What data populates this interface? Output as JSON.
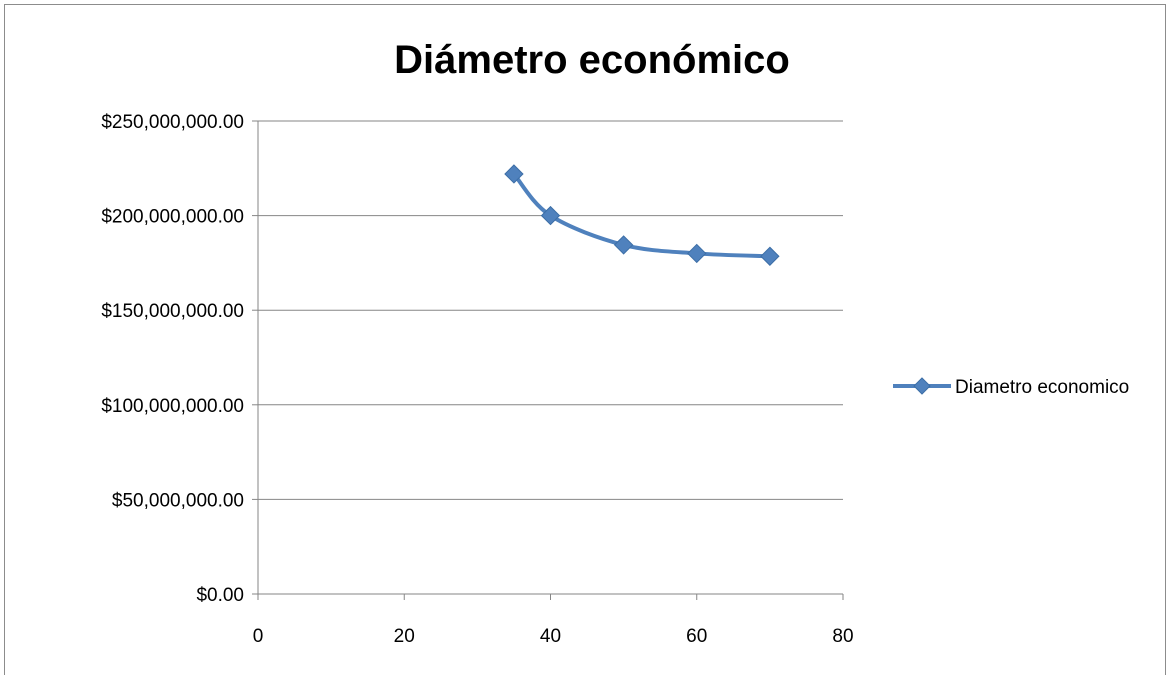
{
  "chart_data": {
    "type": "scatter",
    "title": "Diámetro económico",
    "xlabel": "",
    "ylabel": "",
    "xlim": [
      0,
      80
    ],
    "ylim": [
      0,
      250000000
    ],
    "x_ticks": [
      0,
      20,
      40,
      60,
      80
    ],
    "x_tick_labels": [
      "0",
      "20",
      "40",
      "60",
      "80"
    ],
    "y_ticks": [
      0,
      50000000,
      100000000,
      150000000,
      200000000,
      250000000
    ],
    "y_tick_labels": [
      "$0.00",
      "$50,000,000.00",
      "$100,000,000.00",
      "$150,000,000.00",
      "$200,000,000.00",
      "$250,000,000.00"
    ],
    "grid": "horizontal",
    "legend_position": "right",
    "smooth_line": true,
    "series": [
      {
        "name": "Diametro economico",
        "color": "#4f81bd",
        "marker": "diamond",
        "x": [
          35,
          40,
          50,
          60,
          70
        ],
        "y": [
          222000000,
          200000000,
          184500000,
          180000000,
          178500000
        ]
      }
    ]
  }
}
